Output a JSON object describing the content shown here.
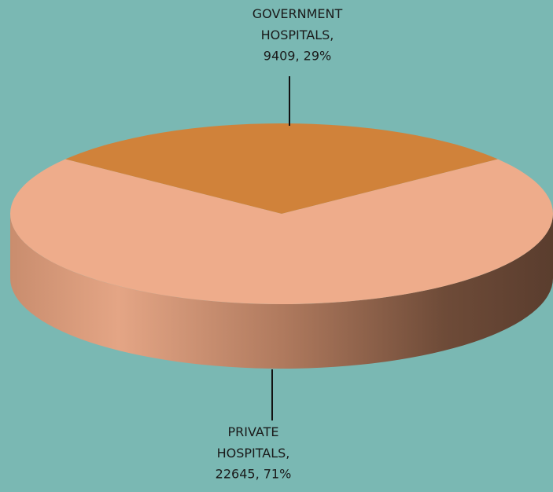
{
  "chart_data": {
    "type": "pie",
    "categories": [
      "GOVERNMENT HOSPITALS,",
      "PRIVATE HOSPITALS,"
    ],
    "values": [
      9409,
      22645
    ],
    "value_labels": [
      "9409, 29%",
      "22645, 71%"
    ],
    "colors": [
      "#d0823a",
      "#eeac8b"
    ]
  }
}
